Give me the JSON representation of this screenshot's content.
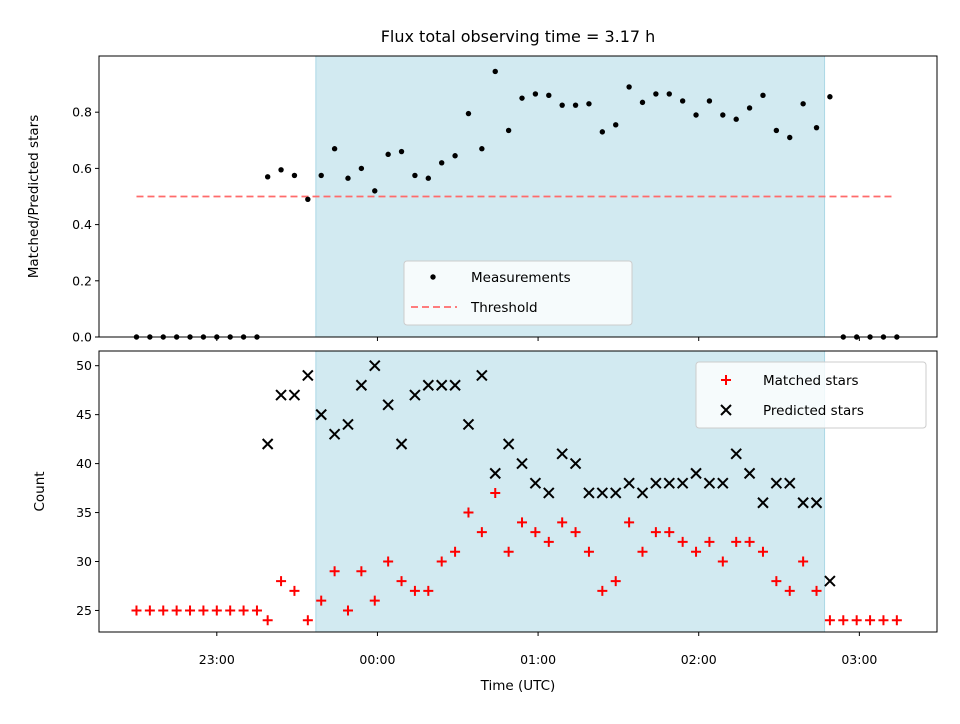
{
  "figure": {
    "title": "Flux total observing time = 3.17 h",
    "xlabel": "Time (UTC)"
  },
  "chart_data": [
    {
      "type": "scatter",
      "name": "fraction",
      "ylabel": "Matched/Predicted stars",
      "xlim": [
        "22:16",
        "03:29"
      ],
      "ylim": [
        0,
        1.0
      ],
      "yticks": [
        0.0,
        0.2,
        0.4,
        0.6,
        0.8
      ],
      "observing_window": [
        "23:37",
        "02:47"
      ],
      "observing_window_color": "#add8e6",
      "threshold": {
        "name": "Threshold",
        "value": 0.5,
        "from": "22:30",
        "to": "03:13",
        "color": "#ff6b6b",
        "style": "dashed"
      },
      "legend_position": "lower-center",
      "series": [
        {
          "name": "Measurements",
          "color": "#000000",
          "marker": "dot",
          "x": [
            "22:30",
            "22:35",
            "22:40",
            "22:45",
            "22:50",
            "22:55",
            "23:00",
            "23:05",
            "23:10",
            "23:15",
            "23:19",
            "23:24",
            "23:29",
            "23:34",
            "23:39",
            "23:44",
            "23:49",
            "23:54",
            "23:59",
            "24:04",
            "24:09",
            "24:14",
            "24:19",
            "24:24",
            "24:29",
            "24:34",
            "24:39",
            "24:44",
            "24:49",
            "24:54",
            "24:59",
            "25:04",
            "25:09",
            "25:14",
            "25:19",
            "25:24",
            "25:29",
            "25:34",
            "25:39",
            "25:44",
            "25:49",
            "25:54",
            "25:59",
            "26:04",
            "26:09",
            "26:14",
            "26:19",
            "26:24",
            "26:29",
            "26:34",
            "26:39",
            "26:44",
            "26:49",
            "26:54",
            "26:59",
            "27:04",
            "27:09",
            "27:14"
          ],
          "y": [
            0,
            0,
            0,
            0,
            0,
            0,
            0,
            0,
            0,
            0,
            0.57,
            0.595,
            0.575,
            0.49,
            0.575,
            0.67,
            0.565,
            0.6,
            0.52,
            0.65,
            0.66,
            0.575,
            0.565,
            0.62,
            0.645,
            0.795,
            0.67,
            0.945,
            0.735,
            0.85,
            0.865,
            0.86,
            0.825,
            0.825,
            0.83,
            0.73,
            0.755,
            0.89,
            0.835,
            0.865,
            0.865,
            0.84,
            0.79,
            0.84,
            0.79,
            0.775,
            0.815,
            0.86,
            0.735,
            0.71,
            0.83,
            0.745,
            0.855,
            0,
            0,
            0,
            0,
            0
          ]
        }
      ]
    },
    {
      "type": "scatter",
      "name": "counts",
      "ylabel": "Count",
      "xlim": [
        "22:16",
        "03:29"
      ],
      "ylim": [
        22.8,
        51.5
      ],
      "yticks": [
        25,
        30,
        35,
        40,
        45,
        50
      ],
      "xticks": [
        "23:00",
        "00:00",
        "01:00",
        "02:00",
        "03:00"
      ],
      "legend_position": "top-right",
      "series": [
        {
          "name": "Matched stars",
          "color": "#ff0000",
          "marker": "plus",
          "x": [
            "22:30",
            "22:35",
            "22:40",
            "22:45",
            "22:50",
            "22:55",
            "23:00",
            "23:05",
            "23:10",
            "23:15",
            "23:19",
            "23:24",
            "23:29",
            "23:34",
            "23:39",
            "23:44",
            "23:49",
            "23:54",
            "23:59",
            "24:04",
            "24:09",
            "24:14",
            "24:19",
            "24:24",
            "24:29",
            "24:34",
            "24:39",
            "24:44",
            "24:49",
            "24:54",
            "24:59",
            "25:04",
            "25:09",
            "25:14",
            "25:19",
            "25:24",
            "25:29",
            "25:34",
            "25:39",
            "25:44",
            "25:49",
            "25:54",
            "25:59",
            "26:04",
            "26:09",
            "26:14",
            "26:19",
            "26:24",
            "26:29",
            "26:34",
            "26:39",
            "26:44",
            "26:49",
            "26:54",
            "26:59",
            "27:04",
            "27:09",
            "27:14"
          ],
          "y": [
            25,
            25,
            25,
            25,
            25,
            25,
            25,
            25,
            25,
            25,
            24,
            28,
            27,
            24,
            26,
            29,
            25,
            29,
            26,
            30,
            28,
            27,
            27,
            30,
            31,
            35,
            33,
            37,
            31,
            34,
            33,
            32,
            34,
            33,
            31,
            27,
            28,
            34,
            31,
            33,
            33,
            32,
            31,
            32,
            30,
            32,
            32,
            31,
            28,
            27,
            30,
            27,
            24,
            24,
            24,
            24,
            24,
            24
          ]
        },
        {
          "name": "Predicted stars",
          "color": "#000000",
          "marker": "x",
          "x": [
            "23:19",
            "23:24",
            "23:29",
            "23:34",
            "23:39",
            "23:44",
            "23:49",
            "23:54",
            "23:59",
            "24:04",
            "24:09",
            "24:14",
            "24:19",
            "24:24",
            "24:29",
            "24:34",
            "24:39",
            "24:44",
            "24:49",
            "24:54",
            "24:59",
            "25:04",
            "25:09",
            "25:14",
            "25:19",
            "25:24",
            "25:29",
            "25:34",
            "25:39",
            "25:44",
            "25:49",
            "25:54",
            "25:59",
            "26:04",
            "26:09",
            "26:14",
            "26:19",
            "26:24",
            "26:29",
            "26:34",
            "26:39",
            "26:44",
            "26:49"
          ],
          "y": [
            42,
            47,
            47,
            49,
            45,
            43,
            44,
            48,
            50,
            46,
            42,
            47,
            48,
            48,
            48,
            44,
            49,
            39,
            42,
            40,
            38,
            37,
            41,
            40,
            37,
            37,
            37,
            38,
            37,
            38,
            38,
            38,
            39,
            38,
            38,
            41,
            39,
            36,
            38,
            38,
            36,
            36,
            28
          ]
        }
      ]
    }
  ]
}
